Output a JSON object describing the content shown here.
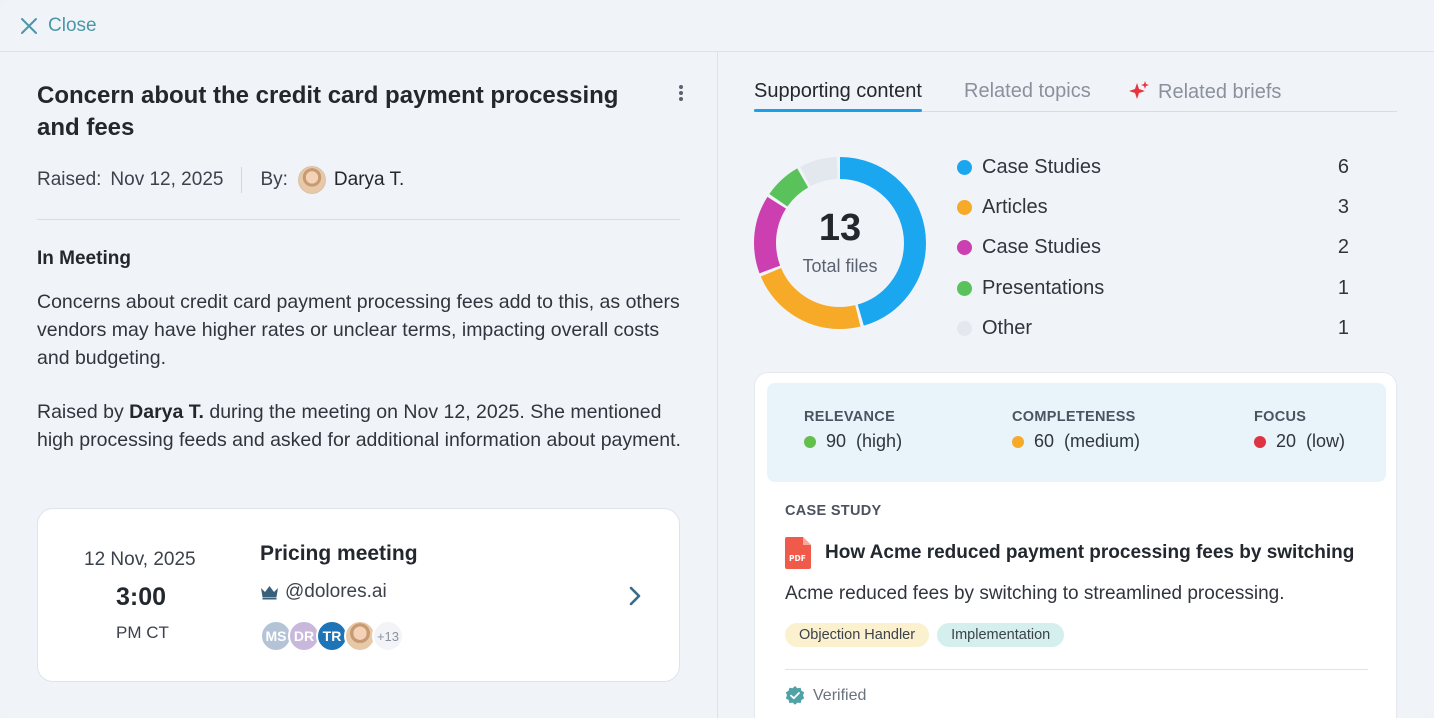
{
  "topbar": {
    "close_label": "Close"
  },
  "issue": {
    "title": "Concern about the credit card payment processing and fees",
    "raised_label": "Raised:",
    "raised_date": "Nov 12, 2025",
    "by_label": "By:",
    "by_name": "Darya T.",
    "section_heading": "In Meeting",
    "paragraph1": "Concerns about credit card payment processing fees add to this, as others vendors may have higher rates or unclear terms, impacting overall costs and budgeting.",
    "paragraph2_prefix": "Raised by ",
    "paragraph2_name": "Darya T.",
    "paragraph2_suffix": " during the meeting on Nov 12, 2025. She mentioned high processing feeds and asked for additional information about payment."
  },
  "meeting": {
    "date": "12 Nov, 2025",
    "time": "3:00",
    "tz": "PM CT",
    "title": "Pricing meeting",
    "host": "@dolores.ai",
    "attendees": [
      "MS",
      "DR",
      "TR"
    ],
    "more_count": "+13"
  },
  "tabs": [
    {
      "label": "Supporting content",
      "active": true
    },
    {
      "label": "Related topics",
      "active": false
    },
    {
      "label": "Related briefs",
      "active": false,
      "icon": "sparkle-icon"
    }
  ],
  "files": {
    "total": "13",
    "total_label": "Total files",
    "categories": [
      {
        "label": "Case Studies",
        "count": 6,
        "color": "#1aa7f0"
      },
      {
        "label": "Articles",
        "count": 3,
        "color": "#f7a928"
      },
      {
        "label": "Case Studies",
        "count": 2,
        "color": "#cc3fb0"
      },
      {
        "label": "Presentations",
        "count": 1,
        "color": "#5ac25a"
      },
      {
        "label": "Other",
        "count": 1,
        "color": "#e3e8ee"
      }
    ]
  },
  "scores": [
    {
      "label": "RELEVANCE",
      "value": "90",
      "level": "(high)",
      "color": "#62bf4c"
    },
    {
      "label": "COMPLETENESS",
      "value": "60",
      "level": "(medium)",
      "color": "#f7a928"
    },
    {
      "label": "FOCUS",
      "value": "20",
      "level": "(low)",
      "color": "#de3340"
    }
  ],
  "document": {
    "type": "CASE STUDY",
    "title": "How Acme reduced payment processing fees by switching",
    "description": "Acme reduced fees by switching to streamlined processing.",
    "tags": [
      "Objection Handler",
      "Implementation"
    ],
    "status": "Verified"
  }
}
